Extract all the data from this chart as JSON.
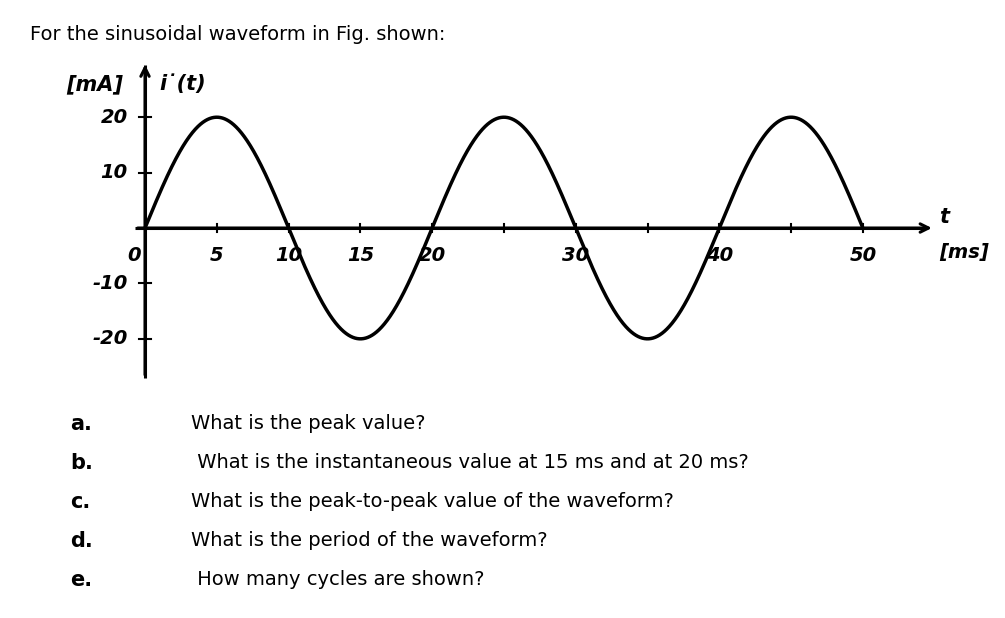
{
  "title": "For the sinusoidal waveform in Fig. shown:",
  "amplitude": 20,
  "period_ms": 20,
  "t_start": 0,
  "t_end": 50,
  "ylim": [
    -28,
    30
  ],
  "xlim": [
    -1,
    55
  ],
  "x_ticks": [
    5,
    10,
    15,
    20,
    25,
    30,
    35,
    40,
    45,
    50
  ],
  "x_labels": {
    "0": 0,
    "5": 5,
    "10": 10,
    "15": 15,
    "20": 20,
    "30": 30,
    "40": 40,
    "50": 50
  },
  "y_labels": {
    "20": 20,
    "10": 10,
    "-10": -10,
    "-20": -20
  },
  "questions": [
    [
      "a.",
      "What is the peak value?"
    ],
    [
      "b.",
      " What is the instantaneous value at 15 ms and at 20 ms?"
    ],
    [
      "c.",
      "What is the peak-to-peak value of the waveform?"
    ],
    [
      "d.",
      "What is the period of the waveform?"
    ],
    [
      "e.",
      " How many cycles are shown?"
    ]
  ],
  "bg_color": "#ffffff",
  "wave_color": "#000000",
  "axis_color": "#000000",
  "wave_linewidth": 2.5,
  "title_fontsize": 14,
  "tick_fontsize": 14,
  "label_fontsize": 15,
  "question_letter_fontsize": 15,
  "question_text_fontsize": 14
}
